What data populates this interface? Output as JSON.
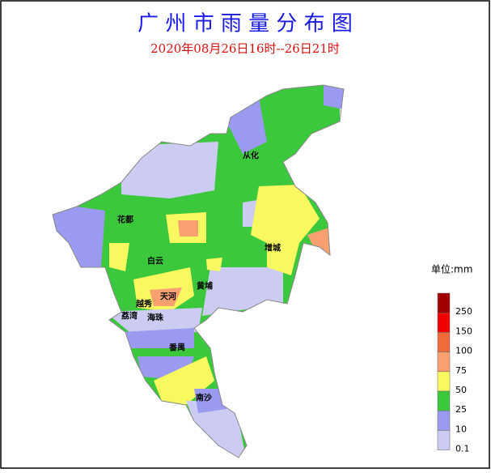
{
  "title": "广 州 市 雨 量 分 布 图",
  "subtitle": "2020年08月26日16时--26日21时",
  "districts": [
    "从化",
    "花都",
    "白云",
    "增城",
    "黄埔",
    "天河",
    "越秀",
    "荔湾",
    "海珠",
    "番禺",
    "南沙"
  ],
  "legend": {
    "unit": "单位:mm",
    "levels": [
      {
        "label": "250",
        "color": "#a00000"
      },
      {
        "label": "150",
        "color": "#f00000"
      },
      {
        "label": "100",
        "color": "#f06a3a"
      },
      {
        "label": "75",
        "color": "#f8a070"
      },
      {
        "label": "50",
        "color": "#f8f860"
      },
      {
        "label": "25",
        "color": "#3cc83c"
      },
      {
        "label": "10",
        "color": "#9a9af0"
      },
      {
        "label": "0.1",
        "color": "#ccccf2"
      }
    ]
  }
}
